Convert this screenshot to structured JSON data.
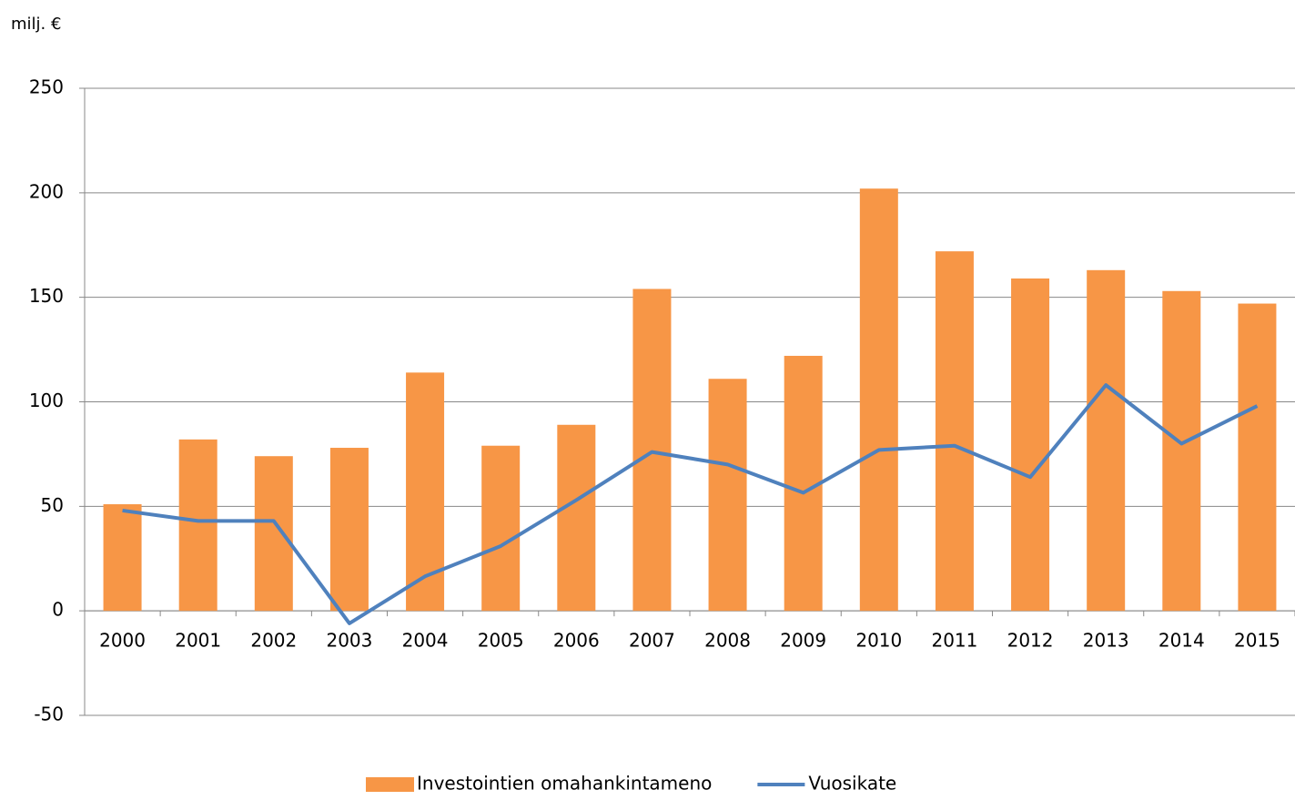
{
  "chart_data": {
    "type": "bar",
    "y_label": "milj. €",
    "categories": [
      "2000",
      "2001",
      "2002",
      "2003",
      "2004",
      "2005",
      "2006",
      "2007",
      "2008",
      "2009",
      "2010",
      "2011",
      "2012",
      "2013",
      "2014",
      "2015"
    ],
    "series": [
      {
        "name": "Investointien omahankintameno",
        "type": "bar",
        "color": "#f79646",
        "values": [
          51,
          82,
          74,
          78,
          114,
          79,
          89,
          154,
          111,
          122,
          202,
          172,
          159,
          163,
          153,
          147
        ]
      },
      {
        "name": "Vuosikate",
        "type": "line",
        "color": "#4f81bd",
        "values": [
          48,
          43,
          43,
          -6,
          16.5,
          31,
          53,
          76,
          70,
          56.5,
          77,
          79,
          64,
          108,
          80,
          98
        ]
      }
    ],
    "ylim": [
      -50,
      250
    ],
    "yticks": [
      -50,
      0,
      50,
      100,
      150,
      200,
      250
    ],
    "grid": true,
    "legend": "bottom"
  }
}
